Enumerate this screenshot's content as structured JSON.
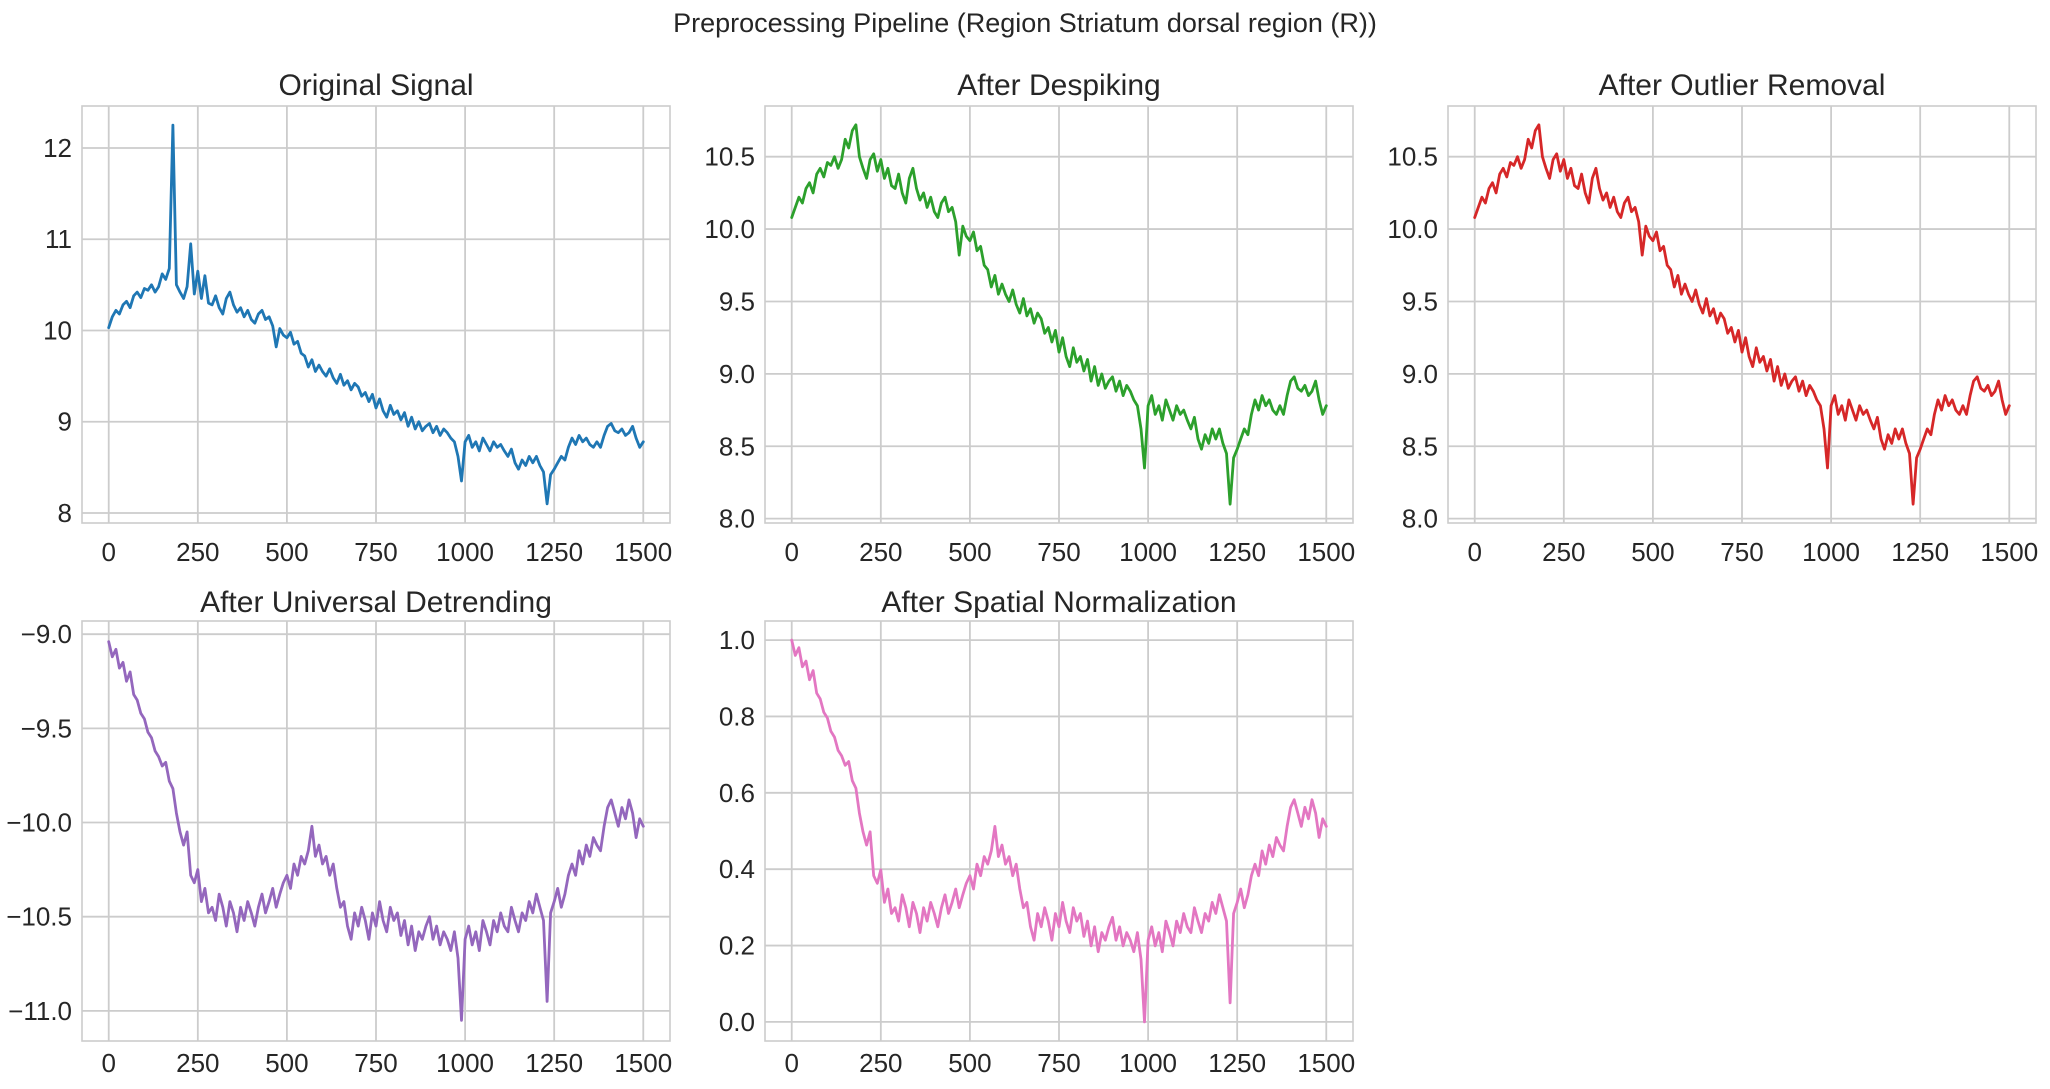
{
  "suptitle": "Preprocessing Pipeline (Region Striatum dorsal region (R))",
  "style_colors": {
    "background": "#ffffff",
    "grid": "#cccccc",
    "spine": "#cccccc",
    "text": "#262626"
  },
  "chart_data": [
    {
      "type": "line",
      "title": "Original Signal",
      "color": "#1f77b4",
      "xlabel": "",
      "ylabel": "",
      "xlim": [
        -75,
        1575
      ],
      "ylim": [
        7.89,
        12.46
      ],
      "xticks": [
        0,
        250,
        500,
        750,
        1000,
        1250,
        1500
      ],
      "xtick_labels": [
        "0",
        "250",
        "500",
        "750",
        "1000",
        "1250",
        "1500"
      ],
      "yticks": [
        8,
        9,
        10,
        11,
        12
      ],
      "ytick_labels": [
        "8",
        "9",
        "10",
        "11",
        "12"
      ],
      "grid": true,
      "x_start": 0,
      "x_step": 10,
      "values": [
        10.03,
        10.15,
        10.22,
        10.18,
        10.28,
        10.32,
        10.25,
        10.38,
        10.42,
        10.36,
        10.46,
        10.44,
        10.5,
        10.42,
        10.48,
        10.62,
        10.56,
        10.68,
        12.25,
        10.5,
        10.42,
        10.35,
        10.48,
        10.95,
        10.4,
        10.65,
        10.35,
        10.6,
        10.3,
        10.28,
        10.38,
        10.25,
        10.18,
        10.35,
        10.42,
        10.28,
        10.2,
        10.25,
        10.15,
        10.22,
        10.12,
        10.08,
        10.18,
        10.22,
        10.12,
        10.15,
        10.05,
        9.82,
        10.02,
        9.95,
        9.92,
        9.98,
        9.85,
        9.88,
        9.75,
        9.72,
        9.6,
        9.68,
        9.55,
        9.62,
        9.55,
        9.5,
        9.58,
        9.48,
        9.42,
        9.52,
        9.4,
        9.45,
        9.35,
        9.42,
        9.38,
        9.28,
        9.32,
        9.22,
        9.3,
        9.15,
        9.25,
        9.12,
        9.05,
        9.18,
        9.08,
        9.12,
        9.02,
        9.1,
        8.95,
        9.05,
        8.92,
        9.0,
        8.9,
        8.95,
        8.98,
        8.88,
        8.95,
        8.85,
        8.92,
        8.88,
        8.82,
        8.78,
        8.62,
        8.35,
        8.78,
        8.85,
        8.72,
        8.78,
        8.68,
        8.82,
        8.75,
        8.68,
        8.78,
        8.72,
        8.75,
        8.68,
        8.62,
        8.7,
        8.55,
        8.48,
        8.58,
        8.52,
        8.62,
        8.55,
        8.62,
        8.52,
        8.45,
        8.1,
        8.42,
        8.48,
        8.55,
        8.62,
        8.58,
        8.72,
        8.82,
        8.75,
        8.85,
        8.78,
        8.82,
        8.75,
        8.72,
        8.78,
        8.72,
        8.85,
        8.95,
        8.98,
        8.9,
        8.88,
        8.92,
        8.85,
        8.88,
        8.95,
        8.82,
        8.72,
        8.78
      ]
    },
    {
      "type": "line",
      "title": "After Despiking",
      "color": "#2ca02c",
      "xlabel": "",
      "ylabel": "",
      "xlim": [
        -75,
        1575
      ],
      "ylim": [
        7.97,
        10.85
      ],
      "xticks": [
        0,
        250,
        500,
        750,
        1000,
        1250,
        1500
      ],
      "xtick_labels": [
        "0",
        "250",
        "500",
        "750",
        "1000",
        "1250",
        "1500"
      ],
      "yticks": [
        8.0,
        8.5,
        9.0,
        9.5,
        10.0,
        10.5
      ],
      "ytick_labels": [
        "8.0",
        "8.5",
        "9.0",
        "9.5",
        "10.0",
        "10.5"
      ],
      "grid": true,
      "x_start": 0,
      "x_step": 10,
      "values": [
        10.08,
        10.15,
        10.22,
        10.18,
        10.28,
        10.32,
        10.25,
        10.38,
        10.42,
        10.36,
        10.46,
        10.44,
        10.5,
        10.42,
        10.48,
        10.62,
        10.56,
        10.68,
        10.72,
        10.5,
        10.42,
        10.35,
        10.48,
        10.52,
        10.4,
        10.48,
        10.35,
        10.42,
        10.3,
        10.28,
        10.38,
        10.25,
        10.18,
        10.35,
        10.42,
        10.28,
        10.2,
        10.25,
        10.15,
        10.22,
        10.12,
        10.08,
        10.18,
        10.22,
        10.12,
        10.15,
        10.05,
        9.82,
        10.02,
        9.95,
        9.92,
        9.98,
        9.85,
        9.88,
        9.75,
        9.72,
        9.6,
        9.68,
        9.55,
        9.62,
        9.55,
        9.5,
        9.58,
        9.48,
        9.42,
        9.52,
        9.4,
        9.45,
        9.35,
        9.42,
        9.38,
        9.28,
        9.32,
        9.22,
        9.3,
        9.15,
        9.25,
        9.12,
        9.05,
        9.18,
        9.08,
        9.12,
        9.02,
        9.1,
        8.95,
        9.05,
        8.92,
        9.0,
        8.9,
        8.95,
        8.98,
        8.88,
        8.95,
        8.85,
        8.92,
        8.88,
        8.82,
        8.78,
        8.62,
        8.35,
        8.78,
        8.85,
        8.72,
        8.78,
        8.68,
        8.82,
        8.75,
        8.68,
        8.78,
        8.72,
        8.75,
        8.68,
        8.62,
        8.7,
        8.55,
        8.48,
        8.58,
        8.52,
        8.62,
        8.55,
        8.62,
        8.52,
        8.45,
        8.1,
        8.42,
        8.48,
        8.55,
        8.62,
        8.58,
        8.72,
        8.82,
        8.75,
        8.85,
        8.78,
        8.82,
        8.75,
        8.72,
        8.78,
        8.72,
        8.85,
        8.95,
        8.98,
        8.9,
        8.88,
        8.92,
        8.85,
        8.88,
        8.95,
        8.82,
        8.72,
        8.78
      ]
    },
    {
      "type": "line",
      "title": "After Outlier Removal",
      "color": "#d62728",
      "xlabel": "",
      "ylabel": "",
      "xlim": [
        -75,
        1575
      ],
      "ylim": [
        7.97,
        10.85
      ],
      "xticks": [
        0,
        250,
        500,
        750,
        1000,
        1250,
        1500
      ],
      "xtick_labels": [
        "0",
        "250",
        "500",
        "750",
        "1000",
        "1250",
        "1500"
      ],
      "yticks": [
        8.0,
        8.5,
        9.0,
        9.5,
        10.0,
        10.5
      ],
      "ytick_labels": [
        "8.0",
        "8.5",
        "9.0",
        "9.5",
        "10.0",
        "10.5"
      ],
      "grid": true,
      "x_start": 0,
      "x_step": 10,
      "values": [
        10.08,
        10.15,
        10.22,
        10.18,
        10.28,
        10.32,
        10.25,
        10.38,
        10.42,
        10.36,
        10.46,
        10.44,
        10.5,
        10.42,
        10.48,
        10.62,
        10.56,
        10.68,
        10.72,
        10.5,
        10.42,
        10.35,
        10.48,
        10.52,
        10.4,
        10.48,
        10.35,
        10.42,
        10.3,
        10.28,
        10.38,
        10.25,
        10.18,
        10.35,
        10.42,
        10.28,
        10.2,
        10.25,
        10.15,
        10.22,
        10.12,
        10.08,
        10.18,
        10.22,
        10.12,
        10.15,
        10.05,
        9.82,
        10.02,
        9.95,
        9.92,
        9.98,
        9.85,
        9.88,
        9.75,
        9.72,
        9.6,
        9.68,
        9.55,
        9.62,
        9.55,
        9.5,
        9.58,
        9.48,
        9.42,
        9.52,
        9.4,
        9.45,
        9.35,
        9.42,
        9.38,
        9.28,
        9.32,
        9.22,
        9.3,
        9.15,
        9.25,
        9.12,
        9.05,
        9.18,
        9.08,
        9.12,
        9.02,
        9.1,
        8.95,
        9.05,
        8.92,
        9.0,
        8.9,
        8.95,
        8.98,
        8.88,
        8.95,
        8.85,
        8.92,
        8.88,
        8.82,
        8.78,
        8.62,
        8.35,
        8.78,
        8.85,
        8.72,
        8.78,
        8.68,
        8.82,
        8.75,
        8.68,
        8.78,
        8.72,
        8.75,
        8.68,
        8.62,
        8.7,
        8.55,
        8.48,
        8.58,
        8.52,
        8.62,
        8.55,
        8.62,
        8.52,
        8.45,
        8.1,
        8.42,
        8.48,
        8.55,
        8.62,
        8.58,
        8.72,
        8.82,
        8.75,
        8.85,
        8.78,
        8.82,
        8.75,
        8.72,
        8.78,
        8.72,
        8.85,
        8.95,
        8.98,
        8.9,
        8.88,
        8.92,
        8.85,
        8.88,
        8.95,
        8.82,
        8.72,
        8.78
      ]
    },
    {
      "type": "line",
      "title": "After Universal Detrending",
      "color": "#9467bd",
      "xlabel": "",
      "ylabel": "",
      "xlim": [
        -75,
        1575
      ],
      "ylim": [
        -11.16,
        -8.93
      ],
      "xticks": [
        0,
        250,
        500,
        750,
        1000,
        1250,
        1500
      ],
      "xtick_labels": [
        "0",
        "250",
        "500",
        "750",
        "1000",
        "1250",
        "1500"
      ],
      "yticks": [
        -11.0,
        -10.5,
        -10.0,
        -9.5,
        -9.0
      ],
      "ytick_labels": [
        "−11.0",
        "−10.5",
        "−10.0",
        "−9.5",
        "−9.0"
      ],
      "grid": true,
      "x_start": 0,
      "x_step": 10,
      "values": [
        -9.04,
        -9.12,
        -9.08,
        -9.18,
        -9.15,
        -9.25,
        -9.2,
        -9.32,
        -9.35,
        -9.42,
        -9.45,
        -9.52,
        -9.55,
        -9.62,
        -9.65,
        -9.7,
        -9.68,
        -9.78,
        -9.82,
        -9.95,
        -10.05,
        -10.12,
        -10.05,
        -10.28,
        -10.32,
        -10.25,
        -10.42,
        -10.35,
        -10.48,
        -10.45,
        -10.52,
        -10.38,
        -10.45,
        -10.55,
        -10.42,
        -10.48,
        -10.58,
        -10.45,
        -10.52,
        -10.42,
        -10.48,
        -10.55,
        -10.45,
        -10.38,
        -10.48,
        -10.42,
        -10.35,
        -10.45,
        -10.38,
        -10.32,
        -10.28,
        -10.35,
        -10.22,
        -10.28,
        -10.18,
        -10.22,
        -10.15,
        -10.02,
        -10.18,
        -10.12,
        -10.22,
        -10.18,
        -10.28,
        -10.22,
        -10.35,
        -10.45,
        -10.42,
        -10.55,
        -10.62,
        -10.48,
        -10.55,
        -10.45,
        -10.52,
        -10.62,
        -10.48,
        -10.55,
        -10.42,
        -10.52,
        -10.58,
        -10.45,
        -10.52,
        -10.48,
        -10.6,
        -10.52,
        -10.65,
        -10.55,
        -10.68,
        -10.58,
        -10.62,
        -10.55,
        -10.5,
        -10.62,
        -10.55,
        -10.65,
        -10.58,
        -10.62,
        -10.68,
        -10.58,
        -10.72,
        -11.05,
        -10.62,
        -10.55,
        -10.65,
        -10.58,
        -10.68,
        -10.52,
        -10.58,
        -10.65,
        -10.52,
        -10.58,
        -10.48,
        -10.55,
        -10.58,
        -10.45,
        -10.52,
        -10.58,
        -10.48,
        -10.52,
        -10.42,
        -10.48,
        -10.38,
        -10.45,
        -10.52,
        -10.95,
        -10.48,
        -10.42,
        -10.35,
        -10.45,
        -10.38,
        -10.28,
        -10.22,
        -10.28,
        -10.15,
        -10.22,
        -10.12,
        -10.18,
        -10.08,
        -10.12,
        -10.15,
        -10.02,
        -9.92,
        -9.88,
        -9.95,
        -10.02,
        -9.92,
        -9.98,
        -9.88,
        -9.95,
        -10.08,
        -9.98,
        -10.02
      ]
    },
    {
      "type": "line",
      "title": "After Spatial Normalization",
      "color": "#e377c2",
      "xlabel": "",
      "ylabel": "",
      "xlim": [
        -75,
        1575
      ],
      "ylim": [
        -0.05,
        1.05
      ],
      "xticks": [
        0,
        250,
        500,
        750,
        1000,
        1250,
        1500
      ],
      "xtick_labels": [
        "0",
        "250",
        "500",
        "750",
        "1000",
        "1250",
        "1500"
      ],
      "yticks": [
        0.0,
        0.2,
        0.4,
        0.6,
        0.8,
        1.0
      ],
      "ytick_labels": [
        "0.0",
        "0.2",
        "0.4",
        "0.6",
        "0.8",
        "1.0"
      ],
      "grid": true,
      "x_start": 0,
      "x_step": 10,
      "values": [
        1.0,
        0.96,
        0.98,
        0.93,
        0.945,
        0.896,
        0.92,
        0.861,
        0.846,
        0.811,
        0.796,
        0.761,
        0.746,
        0.711,
        0.697,
        0.672,
        0.682,
        0.632,
        0.612,
        0.547,
        0.498,
        0.463,
        0.498,
        0.383,
        0.363,
        0.398,
        0.313,
        0.348,
        0.284,
        0.299,
        0.264,
        0.333,
        0.299,
        0.249,
        0.313,
        0.284,
        0.234,
        0.299,
        0.264,
        0.313,
        0.284,
        0.249,
        0.299,
        0.333,
        0.284,
        0.313,
        0.348,
        0.299,
        0.333,
        0.363,
        0.383,
        0.348,
        0.413,
        0.383,
        0.433,
        0.413,
        0.448,
        0.512,
        0.433,
        0.463,
        0.413,
        0.433,
        0.383,
        0.413,
        0.348,
        0.299,
        0.313,
        0.249,
        0.214,
        0.284,
        0.249,
        0.299,
        0.264,
        0.214,
        0.284,
        0.249,
        0.313,
        0.264,
        0.234,
        0.299,
        0.264,
        0.284,
        0.224,
        0.264,
        0.199,
        0.249,
        0.184,
        0.234,
        0.214,
        0.249,
        0.274,
        0.214,
        0.249,
        0.199,
        0.234,
        0.214,
        0.184,
        0.234,
        0.164,
        0.0,
        0.214,
        0.249,
        0.199,
        0.234,
        0.184,
        0.264,
        0.234,
        0.199,
        0.264,
        0.234,
        0.284,
        0.249,
        0.234,
        0.299,
        0.264,
        0.234,
        0.284,
        0.264,
        0.313,
        0.284,
        0.333,
        0.299,
        0.264,
        0.05,
        0.284,
        0.313,
        0.348,
        0.299,
        0.333,
        0.383,
        0.413,
        0.383,
        0.448,
        0.413,
        0.463,
        0.433,
        0.483,
        0.463,
        0.448,
        0.512,
        0.562,
        0.582,
        0.547,
        0.512,
        0.562,
        0.532,
        0.582,
        0.547,
        0.483,
        0.532,
        0.512
      ]
    }
  ]
}
